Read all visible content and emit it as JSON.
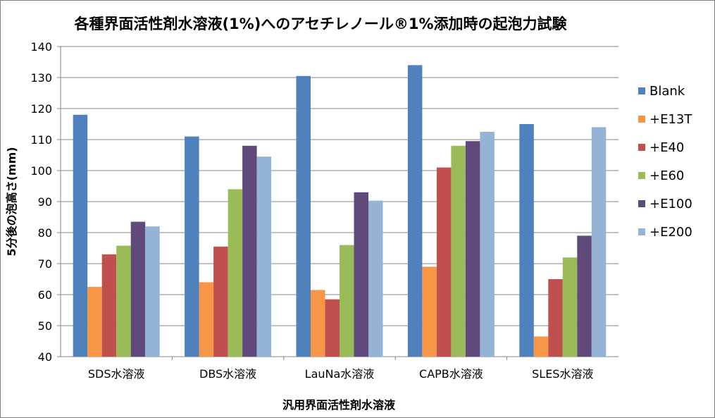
{
  "chart_data": {
    "type": "bar",
    "title": "各種界面活性剤水溶液(1%)へのアセチレノール®1%添加時の起泡力試験",
    "xlabel": "汎用界面活性剤水溶液",
    "ylabel": "5分後の泡高さ(mm)",
    "ylim": [
      40,
      140
    ],
    "yticks": [
      "40",
      "50",
      "60",
      "70",
      "80",
      "90",
      "100",
      "110",
      "120",
      "130",
      "140"
    ],
    "grid": true,
    "legend_position": "right",
    "categories": [
      "SDS水溶液",
      "DBS水溶液",
      "LauNa水溶液",
      "CAPB水溶液",
      "SLES水溶液"
    ],
    "series": [
      {
        "name": "Blank",
        "color": "#4f81bd",
        "values": [
          118,
          111,
          130.5,
          134,
          115
        ]
      },
      {
        "name": "+E13T",
        "color": "#f79646",
        "values": [
          62.5,
          64,
          61.5,
          69,
          46.5
        ]
      },
      {
        "name": "+E40",
        "color": "#c0504d",
        "values": [
          73,
          75.5,
          58.5,
          101,
          65
        ]
      },
      {
        "name": "+E60",
        "color": "#9bbb59",
        "values": [
          75.8,
          94,
          76,
          108,
          72
        ]
      },
      {
        "name": "+E100",
        "color": "#604a7b",
        "values": [
          83.5,
          108,
          93,
          109.5,
          79
        ]
      },
      {
        "name": "+E200",
        "color": "#95b3d7",
        "values": [
          82,
          104.5,
          90.3,
          112.5,
          114
        ]
      }
    ]
  }
}
